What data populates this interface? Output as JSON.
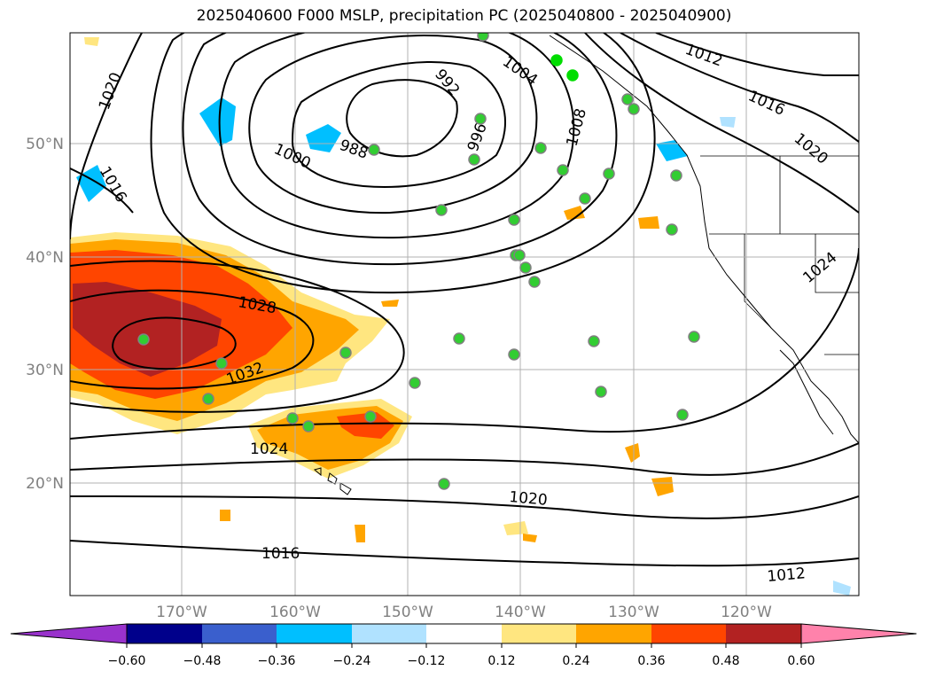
{
  "title": "2025040600 F000 MSLP, precipitation PC (2025040800 - 2025040900)",
  "latitude_labels": [
    "20°N",
    "30°N",
    "40°N",
    "50°N"
  ],
  "longitude_labels": [
    "170°W",
    "160°W",
    "150°W",
    "140°W",
    "130°W",
    "120°W"
  ],
  "contour_labels": [
    "988",
    "992",
    "996",
    "1000",
    "1004",
    "1008",
    "1012",
    "1012",
    "1016",
    "1016",
    "1016",
    "1020",
    "1020",
    "1020",
    "1024",
    "1024",
    "1028",
    "1032"
  ],
  "colorbar": {
    "ticks": [
      "−0.60",
      "−0.48",
      "−0.36",
      "−0.24",
      "−0.12",
      "0.12",
      "0.24",
      "0.36",
      "0.48",
      "0.60"
    ],
    "colors": [
      "#9932cc",
      "#00008b",
      "#3a5fcd",
      "#00bfff",
      "#b0e2ff",
      "#ffffff",
      "#ffe680",
      "#ffa500",
      "#ff4500",
      "#b22222",
      "#ff82ab"
    ]
  },
  "colors": {
    "ocean_bg": "#ffffff",
    "grid": "#b0b0b0",
    "contour": "#000000",
    "marker_fill": "#32cd32",
    "marker_edge": "#808080"
  }
}
